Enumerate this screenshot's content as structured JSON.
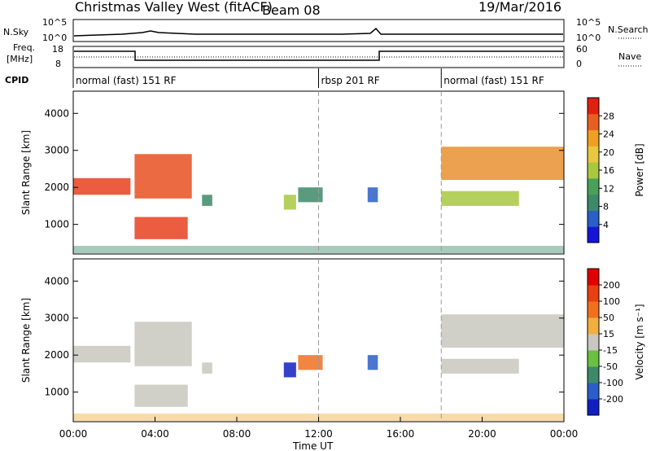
{
  "header": {
    "station": "Christmas Valley West (fitACF)",
    "beam": "Beam 08",
    "date": "19/Mar/2016"
  },
  "strip_labels": {
    "nsky": "N.Sky",
    "freq": "Freq.",
    "freq_unit": "[MHz]",
    "cpid": "CPID",
    "nsearch": "N.Search",
    "nave": "Nave",
    "nsky_ticks": [
      "10^5",
      "10^0"
    ],
    "nsearch_ticks": [
      "10^5",
      "10^0"
    ],
    "freq_ticks": [
      "18",
      "8"
    ],
    "nave_ticks": [
      "60",
      "0"
    ]
  },
  "cpid_segments": [
    {
      "label": "normal (fast) 151 RF",
      "start_h": 0,
      "end_h": 12
    },
    {
      "label": "rbsp 201 RF",
      "start_h": 12,
      "end_h": 18
    },
    {
      "label": "normal (fast) 151 RF",
      "start_h": 18,
      "end_h": 24
    }
  ],
  "x_axis": {
    "label": "Time UT",
    "ticks": [
      "00:00",
      "04:00",
      "08:00",
      "12:00",
      "16:00",
      "20:00",
      "00:00"
    ]
  },
  "colors": {
    "velocity_gray": "#c8c8c0"
  },
  "chart_data": [
    {
      "type": "heatmap",
      "name": "power",
      "ylabel": "Slant Range [km]",
      "yticks": [
        1000,
        2000,
        3000,
        4000
      ],
      "ylim": [
        200,
        4600
      ],
      "xlim_hours": [
        0,
        24
      ],
      "colorbar": {
        "label": "Power [dB]",
        "ticks": [
          "28",
          "24",
          "20",
          "16",
          "12",
          "8",
          "4"
        ],
        "colors": [
          "#1515d8",
          "#2a5ec8",
          "#3d8a6a",
          "#4aa05a",
          "#a8c840",
          "#e8c840",
          "#f0a020",
          "#e86020",
          "#e02010"
        ]
      },
      "regions": [
        {
          "t0": 0.0,
          "t1": 2.8,
          "r0": 1800,
          "r1": 2250,
          "color": "#e84020"
        },
        {
          "t0": 3.0,
          "t1": 5.8,
          "r0": 1700,
          "r1": 2900,
          "color": "#e85020"
        },
        {
          "t0": 3.0,
          "t1": 5.6,
          "r0": 600,
          "r1": 1200,
          "color": "#e84020"
        },
        {
          "t0": 6.3,
          "t1": 6.8,
          "r0": 1500,
          "r1": 1800,
          "color": "#3d8a6a"
        },
        {
          "t0": 10.3,
          "t1": 10.9,
          "r0": 1400,
          "r1": 1800,
          "color": "#a8c840"
        },
        {
          "t0": 11.0,
          "t1": 12.2,
          "r0": 1600,
          "r1": 2000,
          "color": "#3d8a6a"
        },
        {
          "t0": 14.4,
          "t1": 14.9,
          "r0": 1600,
          "r1": 2000,
          "color": "#2a5ec8"
        },
        {
          "t0": 18.0,
          "t1": 24.0,
          "r0": 2200,
          "r1": 3100,
          "color": "#e89030"
        },
        {
          "t0": 18.0,
          "t1": 21.8,
          "r0": 1500,
          "r1": 1900,
          "color": "#a8c840"
        }
      ]
    },
    {
      "type": "heatmap",
      "name": "velocity",
      "ylabel": "Slant Range [km]",
      "yticks": [
        1000,
        2000,
        3000,
        4000
      ],
      "ylim": [
        200,
        4600
      ],
      "xlim_hours": [
        0,
        24
      ],
      "colorbar": {
        "label": "Velocity [m s⁻¹]",
        "ticks": [
          "200",
          "100",
          "50",
          "15",
          "-15",
          "-50",
          "-100",
          "-200"
        ],
        "colors": [
          "#1020c0",
          "#2a5ec8",
          "#3d8a6a",
          "#6ac040",
          "#c8c8c0",
          "#f0b040",
          "#f07020",
          "#e84010",
          "#e00000"
        ]
      },
      "regions": [
        {
          "t0": 0.0,
          "t1": 2.8,
          "r0": 1800,
          "r1": 2250,
          "color": "#c8c8c0"
        },
        {
          "t0": 3.0,
          "t1": 5.8,
          "r0": 1700,
          "r1": 2900,
          "color": "#c8c8c0"
        },
        {
          "t0": 3.0,
          "t1": 5.6,
          "r0": 600,
          "r1": 1200,
          "color": "#c8c8c0"
        },
        {
          "t0": 6.3,
          "t1": 6.8,
          "r0": 1500,
          "r1": 1800,
          "color": "#c8c8c0"
        },
        {
          "t0": 10.3,
          "t1": 10.9,
          "r0": 1400,
          "r1": 1800,
          "color": "#1020c0"
        },
        {
          "t0": 11.0,
          "t1": 12.2,
          "r0": 1600,
          "r1": 2000,
          "color": "#f07020"
        },
        {
          "t0": 14.4,
          "t1": 14.9,
          "r0": 1600,
          "r1": 2000,
          "color": "#2a5ec8"
        },
        {
          "t0": 18.0,
          "t1": 24.0,
          "r0": 2200,
          "r1": 3100,
          "color": "#c8c8c0"
        },
        {
          "t0": 18.0,
          "t1": 21.8,
          "r0": 1500,
          "r1": 1900,
          "color": "#c8c8c0"
        }
      ]
    }
  ]
}
